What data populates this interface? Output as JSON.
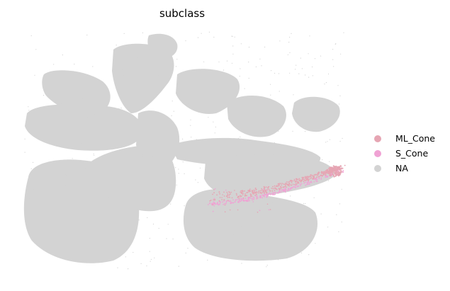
{
  "chart_data": {
    "type": "scatter",
    "title": "subclass",
    "xlabel": "",
    "ylabel": "",
    "axes_visible": false,
    "grid": false,
    "legend_placement": "right",
    "series": [
      {
        "name": "ML_Cone",
        "color": "#e6a5b3"
      },
      {
        "name": "S_Cone",
        "color": "#f0a2d4"
      },
      {
        "name": "NA",
        "color": "#d3d3d3"
      }
    ]
  }
}
